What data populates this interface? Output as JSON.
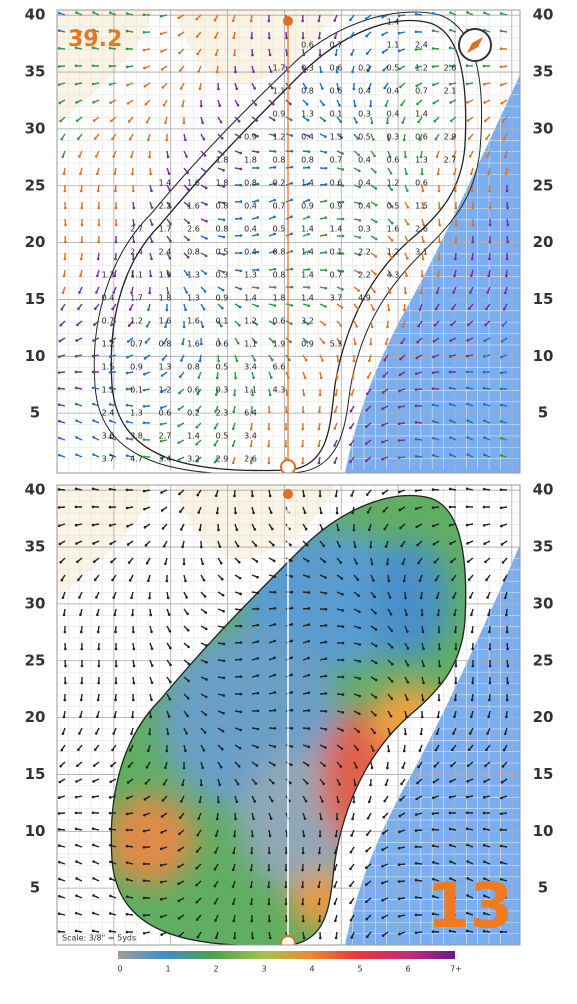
{
  "top_panel": {
    "yards": "39.2",
    "ticks": [
      5,
      10,
      15,
      20,
      25,
      30,
      35,
      40
    ],
    "slopes": [
      [
        null,
        null,
        null,
        null,
        null,
        null,
        null,
        null,
        null,
        null,
        1.4,
        null,
        null
      ],
      [
        null,
        null,
        null,
        null,
        null,
        null,
        null,
        0.6,
        0.7,
        null,
        1.1,
        2.4,
        null
      ],
      [
        null,
        null,
        null,
        null,
        null,
        null,
        1.7,
        0.3,
        0.6,
        0.2,
        0.5,
        1.2,
        2.6
      ],
      [
        null,
        null,
        null,
        null,
        null,
        null,
        1.1,
        0.8,
        0.6,
        0.4,
        0.4,
        0.7,
        2.1
      ],
      [
        null,
        null,
        null,
        null,
        null,
        null,
        0.9,
        1.3,
        0.1,
        0.3,
        0.4,
        1.4,
        null
      ],
      [
        null,
        null,
        null,
        null,
        null,
        0.9,
        1.2,
        0.4,
        1.3,
        0.5,
        0.3,
        0.6,
        2.9
      ],
      [
        null,
        null,
        null,
        null,
        1.8,
        1.8,
        0.8,
        0.8,
        0.7,
        0.4,
        0.6,
        1.3,
        2.7
      ],
      [
        null,
        null,
        1.4,
        1.6,
        1.8,
        0.8,
        0.2,
        1.4,
        0.6,
        0.4,
        1.2,
        0.6,
        null
      ],
      [
        null,
        null,
        2.2,
        1.6,
        0.8,
        0.4,
        0.7,
        0.9,
        0.9,
        0.4,
        0.5,
        1.5,
        null
      ],
      [
        null,
        2.7,
        1.7,
        2.6,
        0.8,
        0.4,
        0.5,
        1.4,
        1.4,
        0.3,
        1.6,
        2.6,
        null
      ],
      [
        null,
        2.4,
        2.4,
        0.8,
        0.5,
        0.4,
        0.8,
        1.4,
        0.1,
        2.2,
        1.2,
        3.1,
        null
      ],
      [
        1.3,
        1.1,
        1.9,
        1.3,
        0.3,
        1.3,
        0.8,
        1.4,
        0.7,
        2.2,
        4.3,
        null,
        null
      ],
      [
        0.4,
        1.7,
        1.8,
        1.3,
        0.9,
        1.4,
        1.8,
        1.4,
        3.7,
        4.9,
        null,
        null,
        null
      ],
      [
        0.7,
        1.2,
        1.6,
        1.6,
        0.1,
        1.2,
        0.6,
        3.2,
        null,
        null,
        null,
        null,
        null
      ],
      [
        1.2,
        0.7,
        0.8,
        1.6,
        0.6,
        1.1,
        1.9,
        0.9,
        5.3,
        null,
        null,
        null,
        null
      ],
      [
        1.5,
        0.9,
        1.3,
        0.8,
        0.5,
        3.4,
        6.6,
        null,
        null,
        null,
        null,
        null,
        null
      ],
      [
        1.1,
        0.1,
        1.2,
        0.6,
        0.3,
        1.1,
        4.3,
        null,
        null,
        null,
        null,
        null,
        null
      ],
      [
        2.4,
        1.3,
        0.6,
        0.2,
        2.3,
        6.4,
        null,
        null,
        null,
        null,
        null,
        null,
        null
      ],
      [
        3.6,
        3.8,
        2.7,
        1.4,
        0.5,
        3.4,
        null,
        null,
        null,
        null,
        null,
        null,
        null
      ],
      [
        3.7,
        4.7,
        3.4,
        3.2,
        2.9,
        2.6,
        null,
        null,
        null,
        null,
        null,
        null,
        null
      ]
    ]
  },
  "bottom_panel": {
    "hole": "13",
    "ticks": [
      5,
      10,
      15,
      20,
      25,
      30,
      35,
      40
    ],
    "scale": "Scale: 3/8\" = 5yds",
    "legend": [
      "0",
      "1",
      "2",
      "3",
      "4",
      "5",
      "6",
      "7+"
    ]
  }
}
